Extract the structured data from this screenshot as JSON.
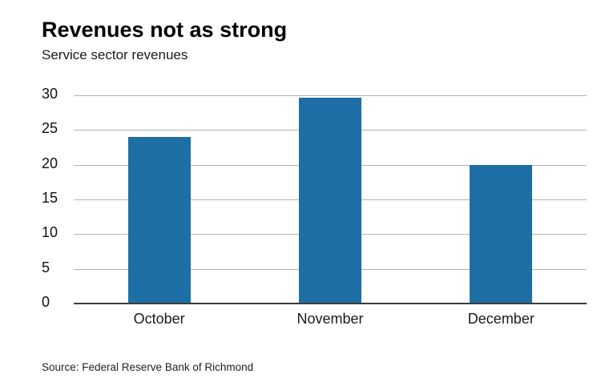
{
  "header": {
    "title": "Revenues not as strong",
    "subtitle": "Service sector revenues"
  },
  "source": "Source: Federal Reserve Bank of Richmond",
  "colors": {
    "bar": "#1d6fa5",
    "gridline": "#b3b3b3",
    "baseline": "#3d3d3d"
  },
  "chart_data": {
    "type": "bar",
    "title": "Revenues not as strong",
    "subtitle": "Service sector revenues",
    "categories": [
      "October",
      "November",
      "December"
    ],
    "values": [
      24,
      29.7,
      20
    ],
    "xlabel": "",
    "ylabel": "",
    "ylim": [
      0,
      30
    ],
    "ytick_step": 5,
    "yticks": [
      0,
      5,
      10,
      15,
      20,
      25,
      30
    ],
    "grid": true,
    "legend": false,
    "bar_color": "#1d6fa5",
    "source": "Source: Federal Reserve Bank of Richmond"
  }
}
